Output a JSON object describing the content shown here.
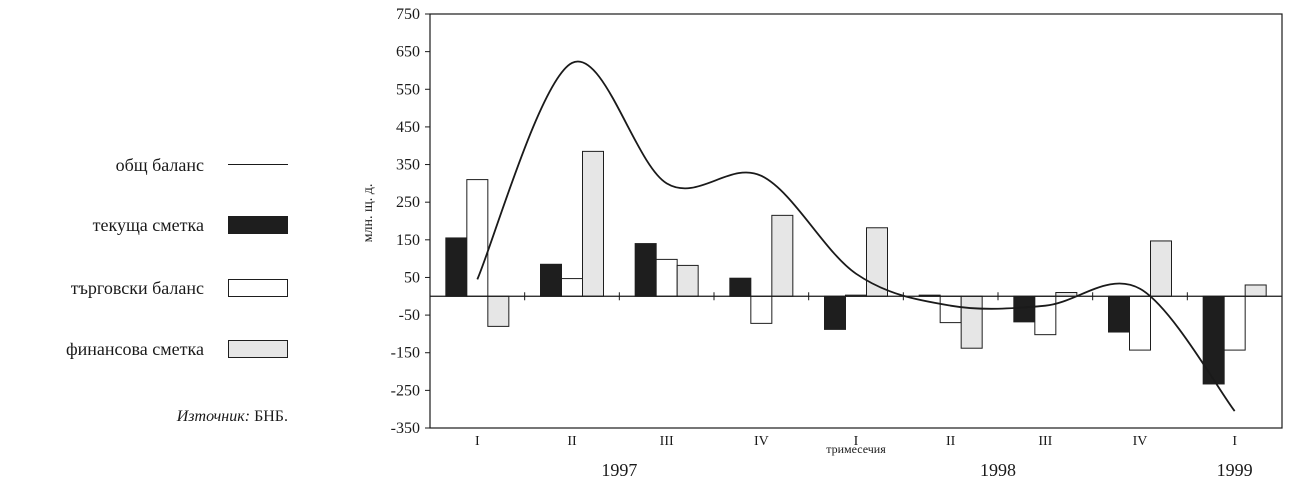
{
  "legend": {
    "total": "общ баланс",
    "current": "текуща сметка",
    "trade": "търговски баланс",
    "financial": "финансова сметка"
  },
  "source": {
    "prefix": "Източник:",
    "text": "БНБ."
  },
  "colors": {
    "current": "#1e1e1e",
    "trade": "#ffffff",
    "financial": "#e6e6e6",
    "line": "#1a1a1a"
  },
  "chart_data": {
    "type": "bar",
    "ylabel": "млн. щ. д.",
    "xlabel": "тримесечия",
    "ylim": [
      -350,
      750
    ],
    "yticks": [
      750,
      650,
      550,
      450,
      350,
      250,
      150,
      50,
      -50,
      -150,
      -250,
      -350
    ],
    "categories": [
      "I",
      "II",
      "III",
      "IV",
      "I",
      "II",
      "III",
      "IV",
      "I"
    ],
    "years": [
      {
        "label": "1997",
        "quarters": [
          0,
          3
        ]
      },
      {
        "label": "1998",
        "quarters": [
          4,
          7
        ]
      },
      {
        "label": "1999",
        "quarters": [
          8,
          8
        ]
      }
    ],
    "series": [
      {
        "name": "текуща сметка",
        "key": "current",
        "values": [
          155,
          85,
          140,
          48,
          -88,
          3,
          -68,
          -95,
          -233
        ]
      },
      {
        "name": "търговски баланс",
        "key": "trade",
        "values": [
          310,
          47,
          98,
          -72,
          3,
          -70,
          -102,
          -143,
          -143
        ]
      },
      {
        "name": "финансова сметка",
        "key": "financial",
        "values": [
          -80,
          385,
          82,
          215,
          182,
          -138,
          10,
          147,
          30
        ]
      }
    ],
    "line": {
      "name": "общ баланс",
      "points": [
        [
          0.0,
          45
        ],
        [
          1.0,
          620
        ],
        [
          2.0,
          300
        ],
        [
          3.0,
          320
        ],
        [
          4.0,
          60
        ],
        [
          5.0,
          -25
        ],
        [
          6.0,
          -25
        ],
        [
          7.0,
          20
        ],
        [
          8.0,
          -305
        ]
      ]
    },
    "grid": false,
    "legend_position": "left"
  }
}
